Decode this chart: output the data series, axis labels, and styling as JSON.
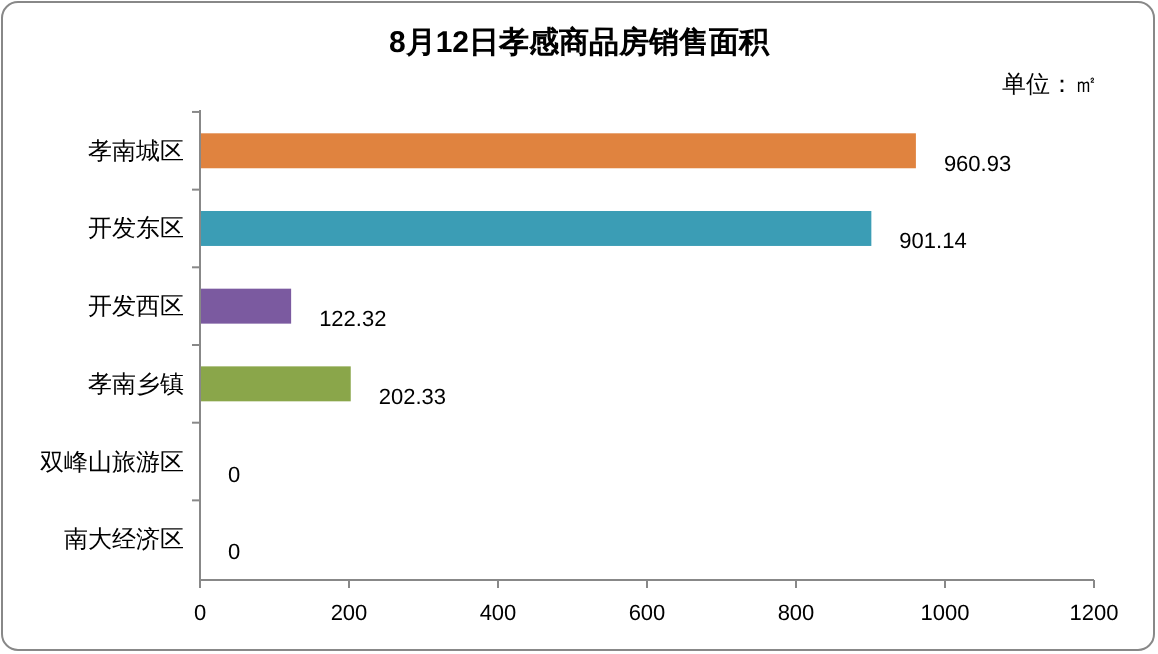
{
  "chart_data": {
    "type": "bar",
    "orientation": "horizontal",
    "title": "8月12日孝感商品房销售面积",
    "annotations": [
      "单位：㎡"
    ],
    "categories": [
      "孝南城区",
      "开发东区",
      "开发西区",
      "孝南乡镇",
      "双峰山旅游区",
      "南大经济区"
    ],
    "values": [
      960.93,
      901.14,
      122.32,
      202.33,
      0,
      0
    ],
    "colors": [
      "#e0833f",
      "#3b9db5",
      "#7b5aa0",
      "#8aa64a",
      "#8aa64a",
      "#8aa64a"
    ],
    "xlim": [
      0,
      1200
    ],
    "xticks": [
      0,
      200,
      400,
      600,
      800,
      1000,
      1200
    ],
    "data_labels": true,
    "grid": false
  }
}
